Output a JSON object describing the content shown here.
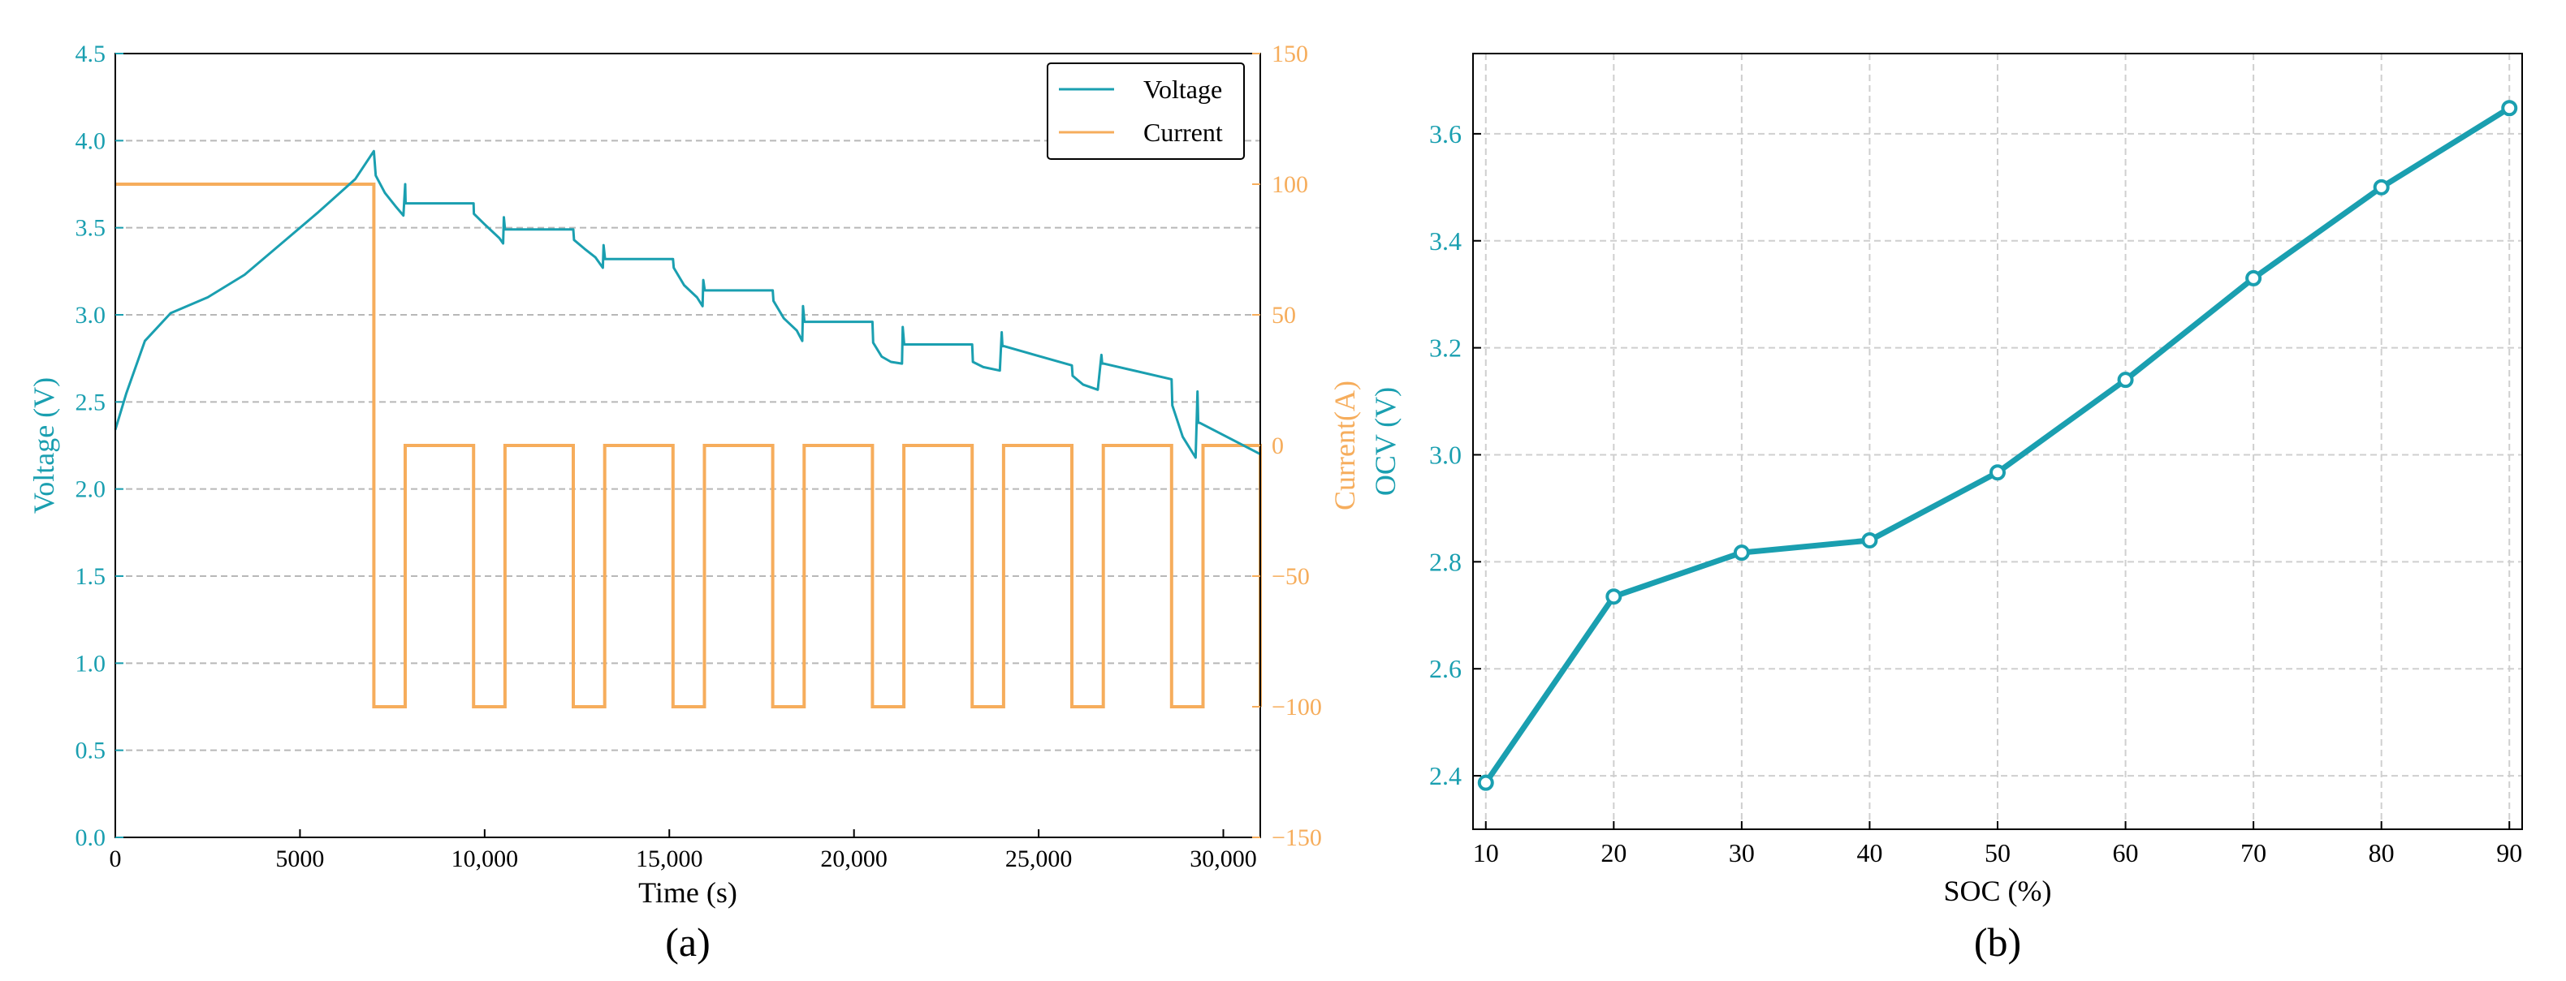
{
  "colors": {
    "voltage": "#1a9fb0",
    "current": "#f6ad5c",
    "grid": "#b8b8b8"
  },
  "chart_data": [
    {
      "panel": "(a)",
      "type": "line",
      "xlabel": "Time (s)",
      "ylabel": "Voltage (V)",
      "y2label": "Current(A)",
      "xlim": [
        0,
        31000
      ],
      "ylim": [
        0,
        4.5
      ],
      "y2lim": [
        -150,
        150
      ],
      "xticks": [
        0,
        5000,
        10000,
        15000,
        20000,
        25000,
        30000
      ],
      "xtick_labels": [
        "0",
        "5000",
        "10,000",
        "15,000",
        "20,000",
        "25,000",
        "30,000"
      ],
      "yticks": [
        0.0,
        0.5,
        1.0,
        1.5,
        2.0,
        2.5,
        3.0,
        3.5,
        4.0,
        4.5
      ],
      "ytick_labels": [
        "0.0",
        "0.5",
        "1.0",
        "1.5",
        "2.0",
        "2.5",
        "3.0",
        "3.5",
        "4.0",
        "4.5"
      ],
      "y2ticks": [
        -150,
        -100,
        -50,
        0,
        50,
        100,
        150
      ],
      "y2tick_labels": [
        "−150",
        "−100",
        "−50",
        "0",
        "50",
        "100",
        "150"
      ],
      "grid": "horizontal dashed",
      "legend": {
        "position": "top-right",
        "entries": [
          "Voltage",
          "Current"
        ]
      },
      "series": [
        {
          "name": "Voltage",
          "axis": "left",
          "x": [
            0,
            300,
            800,
            1500,
            2500,
            3500,
            4500,
            5500,
            6500,
            7000,
            7050,
            7300,
            7600,
            7800,
            7850,
            7860,
            9700,
            9710,
            10000,
            10400,
            10500,
            10520,
            10550,
            12400,
            12420,
            12700,
            13000,
            13200,
            13220,
            13260,
            15100,
            15120,
            15400,
            15750,
            15900,
            15920,
            15960,
            17800,
            17820,
            18100,
            18450,
            18600,
            18620,
            18660,
            20500,
            20520,
            20750,
            21000,
            21300,
            21320,
            21360,
            23200,
            23220,
            23500,
            23950,
            24000,
            24020,
            24060,
            25900,
            25920,
            26200,
            26600,
            26700,
            26720,
            26760,
            28600,
            28620,
            28900,
            29250,
            29300,
            29320,
            29360,
            31000
          ],
          "values": [
            2.34,
            2.55,
            2.85,
            3.01,
            3.1,
            3.23,
            3.41,
            3.59,
            3.78,
            3.94,
            3.8,
            3.7,
            3.62,
            3.57,
            3.75,
            3.64,
            3.64,
            3.58,
            3.52,
            3.44,
            3.41,
            3.56,
            3.49,
            3.49,
            3.43,
            3.38,
            3.33,
            3.27,
            3.4,
            3.32,
            3.32,
            3.27,
            3.17,
            3.1,
            3.05,
            3.2,
            3.14,
            3.14,
            3.08,
            2.98,
            2.91,
            2.85,
            3.05,
            2.96,
            2.96,
            2.84,
            2.76,
            2.73,
            2.72,
            2.93,
            2.83,
            2.83,
            2.73,
            2.7,
            2.68,
            2.9,
            2.82,
            2.82,
            2.71,
            2.65,
            2.6,
            2.57,
            2.77,
            2.72,
            2.72,
            2.63,
            2.48,
            2.3,
            2.18,
            2.56,
            2.38,
            2.38,
            2.2
          ]
        },
        {
          "name": "Current",
          "axis": "right",
          "x": [
            0,
            7000,
            7000,
            7850,
            7850,
            9700,
            9700,
            10550,
            10550,
            12400,
            12400,
            13250,
            13250,
            15100,
            15100,
            15950,
            15950,
            17800,
            17800,
            18650,
            18650,
            20500,
            20500,
            21350,
            21350,
            23200,
            23200,
            24050,
            24050,
            25900,
            25900,
            26750,
            26750,
            28600,
            28600,
            29450,
            29450,
            31000,
            31000
          ],
          "values": [
            100,
            100,
            -100,
            -100,
            0,
            0,
            -100,
            -100,
            0,
            0,
            -100,
            -100,
            0,
            0,
            -100,
            -100,
            0,
            0,
            -100,
            -100,
            0,
            0,
            -100,
            -100,
            0,
            0,
            -100,
            -100,
            0,
            0,
            -100,
            -100,
            0,
            0,
            -100,
            -100,
            0,
            0,
            -100
          ]
        }
      ]
    },
    {
      "panel": "(b)",
      "type": "line",
      "xlabel": "SOC (%)",
      "ylabel": "OCV (V)",
      "xlim": [
        9,
        91
      ],
      "ylim": [
        2.3,
        3.75
      ],
      "xticks": [
        10,
        20,
        30,
        40,
        50,
        60,
        70,
        80,
        90
      ],
      "xtick_labels": [
        "10",
        "20",
        "30",
        "40",
        "50",
        "60",
        "70",
        "80",
        "90"
      ],
      "yticks": [
        2.4,
        2.6,
        2.8,
        3.0,
        3.2,
        3.4,
        3.6
      ],
      "ytick_labels": [
        "2.4",
        "2.6",
        "2.8",
        "3.0",
        "3.2",
        "3.4",
        "3.6"
      ],
      "grid": "both dashed",
      "series": [
        {
          "name": "OCV",
          "x": [
            10,
            20,
            30,
            40,
            50,
            60,
            70,
            80,
            90
          ],
          "values": [
            2.387,
            2.735,
            2.817,
            2.84,
            2.967,
            3.14,
            3.33,
            3.5,
            3.648
          ]
        }
      ]
    }
  ]
}
